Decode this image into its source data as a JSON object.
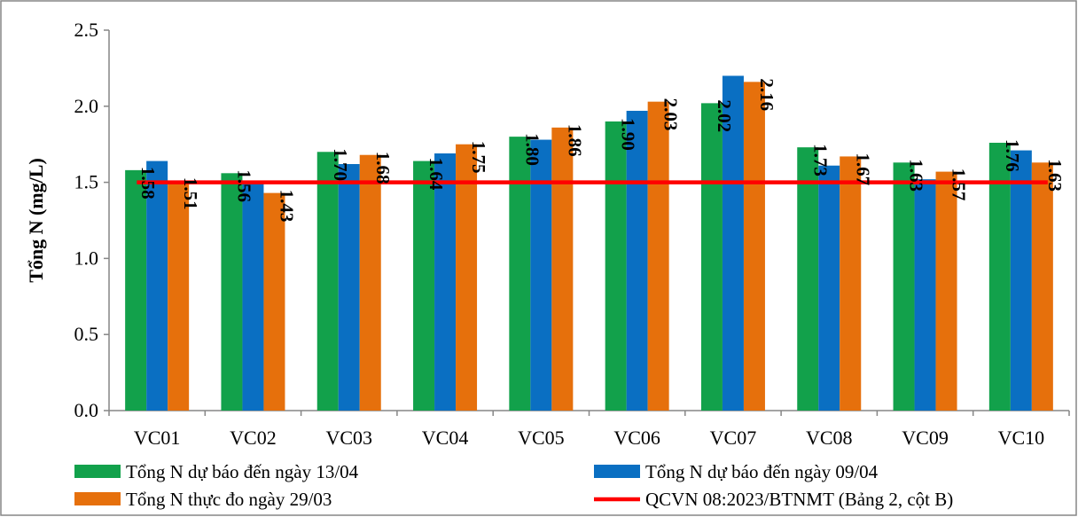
{
  "chart_data": {
    "type": "bar",
    "ylabel": "Tổng N (mg/L)",
    "xlabel": "",
    "ylim": [
      0,
      2.5
    ],
    "yticks": [
      "0.0",
      "0.5",
      "1.0",
      "1.5",
      "2.0",
      "2.5"
    ],
    "grid": false,
    "legend_position": "bottom",
    "categories": [
      "VC01",
      "VC02",
      "VC03",
      "VC04",
      "VC05",
      "VC06",
      "VC07",
      "VC08",
      "VC09",
      "VC10"
    ],
    "series": [
      {
        "name": "Tổng N dự báo đến ngày 13/04",
        "color": "#12A14B",
        "values": [
          1.58,
          1.56,
          1.7,
          1.64,
          1.8,
          1.9,
          2.02,
          1.73,
          1.63,
          1.76
        ],
        "labels": [
          "1.58",
          "1.56",
          "1.70",
          "1.64",
          "1.80",
          "1.90",
          "2.02",
          "1.73",
          "1.63",
          "1.76"
        ]
      },
      {
        "name": "Tổng N dự báo đến ngày 09/04",
        "color": "#0A6FC2",
        "values": [
          1.64,
          1.5,
          1.62,
          1.69,
          1.78,
          1.97,
          2.2,
          1.61,
          1.52,
          1.71
        ],
        "labels": null
      },
      {
        "name": "Tổng N thực đo ngày 29/03",
        "color": "#E6700C",
        "values": [
          1.51,
          1.43,
          1.68,
          1.75,
          1.86,
          2.03,
          2.16,
          1.67,
          1.57,
          1.63
        ],
        "labels": [
          "1.51",
          "1.43",
          "1.68",
          "1.75",
          "1.86",
          "2.03",
          "2.16",
          "1.67",
          "1.57",
          "1.63"
        ]
      }
    ],
    "reference_line": {
      "name": "QCVN 08:2023/BTNMT (Bảng 2, cột B)",
      "value": 1.5,
      "color": "#FF0000"
    }
  }
}
